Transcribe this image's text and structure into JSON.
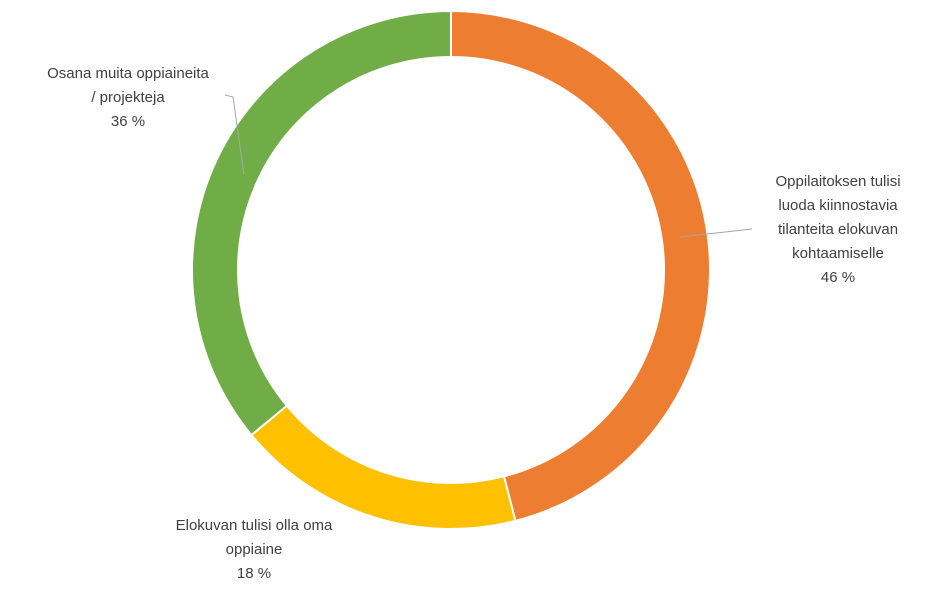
{
  "chart_data": {
    "type": "pie",
    "variant": "donut",
    "title": "",
    "unit": "%",
    "legend": "none",
    "slices": [
      {
        "label_lines": [
          "Oppilaitoksen tulisi",
          "luoda kiinnostavia",
          "tilanteita elokuvan",
          "kohtaamiselle"
        ],
        "value": 46,
        "value_label": "46 %",
        "color": "#ED7D31"
      },
      {
        "label_lines": [
          "Elokuvan tulisi olla oma",
          "oppiaine"
        ],
        "value": 18,
        "value_label": "18 %",
        "color": "#FFC000"
      },
      {
        "label_lines": [
          "Osana muita oppiaineita",
          "/ projekteja"
        ],
        "value": 36,
        "value_label": "36 %",
        "color": "#70AD47"
      }
    ]
  }
}
